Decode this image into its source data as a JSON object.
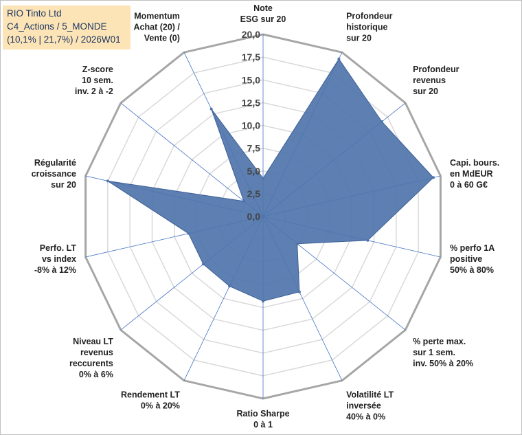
{
  "title": {
    "lines": [
      "RIO Tinto Ltd",
      "C4_Actions / 5_MONDE",
      "(10,1% | 21,7%) / 2026W01"
    ]
  },
  "chart_data": {
    "type": "radar",
    "axis_min": 0,
    "axis_max": 20,
    "tick_labels": [
      "0,0",
      "2,5",
      "5,0",
      "7,5",
      "10,0",
      "12,5",
      "15,0",
      "17,5",
      "20,0"
    ],
    "categories": [
      [
        "Note",
        "ESG sur 20"
      ],
      [
        "Profondeur",
        "historique",
        "sur 20"
      ],
      [
        "Profondeur",
        "revenus",
        "sur 20"
      ],
      [
        "Capi. bours.",
        "en MdEUR",
        "0 à 60 G€"
      ],
      [
        "% perfo 1A",
        "positive",
        "50% à 80%"
      ],
      [
        "% perte max.",
        "sur 1 sem.",
        "inv. 50% à 20%"
      ],
      [
        "Volatilité LT",
        "inversée",
        "40% à 0%"
      ],
      [
        "Ratio Sharpe",
        "0 à 1"
      ],
      [
        "Rendement LT",
        "0% à 20%"
      ],
      [
        "Niveau LT",
        "revenus",
        "reccurents",
        "0% à 6%"
      ],
      [
        "Perfo. LT",
        "vs index",
        "-8% à 12%"
      ],
      [
        "Régularité",
        "croissance",
        "sur 20"
      ],
      [
        "Z-score",
        "10 sem.",
        "inv. 2 à -2"
      ],
      [
        "Momentum",
        "Achat (20) /",
        "Vente (0)"
      ]
    ],
    "values": [
      4.2,
      19.2,
      16.7,
      19.2,
      11.8,
      4.8,
      9.2,
      9.3,
      8.5,
      8.4,
      8.4,
      17.5,
      2.7,
      13.1
    ],
    "colors": {
      "fill": "#4f74ab",
      "grid": "#d9d9d9",
      "outer": "#a6a6a6",
      "spoke": "#4472c4"
    },
    "grid": true
  }
}
